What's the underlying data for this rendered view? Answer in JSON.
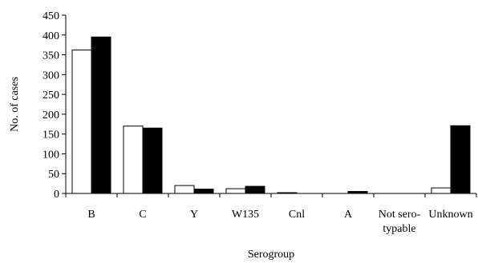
{
  "chart_data": {
    "type": "bar",
    "title": "",
    "xlabel": "Serogroup",
    "ylabel": "No. of cases",
    "ylim": [
      0,
      450
    ],
    "yticks": [
      0,
      50,
      100,
      150,
      200,
      250,
      300,
      350,
      400,
      450
    ],
    "grid": false,
    "legend": "none",
    "categories": [
      "B",
      "C",
      "Y",
      "W135",
      "Cnl",
      "A",
      "Not sero-typable",
      "Unknown"
    ],
    "category_labels": [
      [
        "B"
      ],
      [
        "C"
      ],
      [
        "Y"
      ],
      [
        "W135"
      ],
      [
        "Cnl"
      ],
      [
        "A"
      ],
      [
        "Not sero-",
        "typable"
      ],
      [
        "Unknown"
      ]
    ],
    "series": [
      {
        "fill": "#ffffff",
        "values": [
          362,
          170,
          20,
          12,
          2,
          0,
          0,
          14
        ]
      },
      {
        "fill": "#000000",
        "values": [
          395,
          165,
          11,
          18,
          0,
          5,
          0,
          171
        ]
      }
    ]
  }
}
